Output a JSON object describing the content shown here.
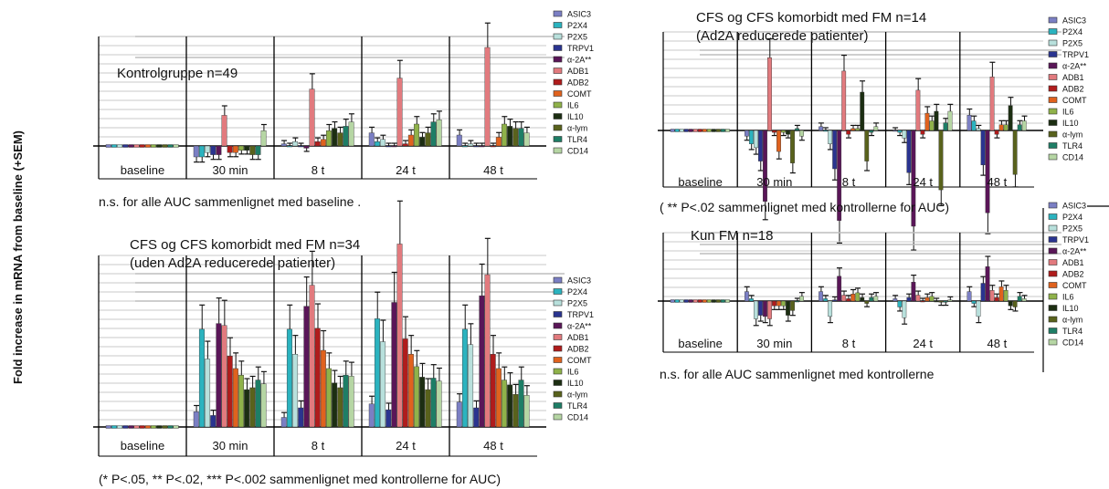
{
  "y_axis_label": "Fold increase in mRNA from baseline (+SEM)",
  "legend_items": [
    "ASIC3",
    "P2X4",
    "P2X5",
    "TRPV1",
    "α-2A**",
    "ADB1",
    "ADB2",
    "COMT",
    "IL6",
    "IL10",
    "α-lym",
    "TLR4",
    "CD14"
  ],
  "legend_colors": [
    "#7b7fc4",
    "#2bb3bf",
    "#b8e0dc",
    "#2a3490",
    "#5a1658",
    "#e27a7e",
    "#b01c1c",
    "#e0621e",
    "#8fb24a",
    "#1c2e12",
    "#59621c",
    "#1e7e66",
    "#b6d6a4"
  ],
  "chart_data": [
    {
      "type": "bar",
      "title": "Kontrolgruppe n=49",
      "categories": [
        "baseline",
        "30 min",
        "8 t",
        "24 t",
        "48 t"
      ],
      "series_values": [
        [
          1,
          0.5,
          1.1,
          1.6,
          1.5
        ],
        [
          1,
          0.5,
          1.0,
          1.2,
          1.0
        ],
        [
          1,
          0.7,
          1.2,
          1.3,
          1.1
        ],
        [
          1,
          0.6,
          1.0,
          1.0,
          1.0
        ],
        [
          1,
          0.6,
          0.9,
          1.0,
          1.0
        ],
        [
          1,
          2.4,
          3.6,
          4.1,
          5.5
        ],
        [
          1,
          0.7,
          1.2,
          1.1,
          1.0
        ],
        [
          1,
          0.7,
          1.3,
          1.5,
          1.4
        ],
        [
          1,
          0.8,
          1.7,
          2.0,
          2.0
        ],
        [
          1,
          0.8,
          1.8,
          1.4,
          1.9
        ],
        [
          1,
          0.6,
          1.6,
          1.6,
          1.8
        ],
        [
          1,
          0.6,
          1.9,
          2.1,
          1.8
        ],
        [
          1,
          1.7,
          2.1,
          2.2,
          1.6
        ]
      ],
      "footnote": "n.s. for alle AUC sammenlignet med baseline ."
    },
    {
      "type": "bar",
      "title": "CFS og CFS komorbidt med FM n=34",
      "subtitle": "(uden Ad2A reducerede patienter)",
      "categories": [
        "baseline",
        "30 min",
        "8 t",
        "24 t",
        "48 t"
      ],
      "series_values": [
        [
          1,
          2.6,
          2.0,
          3.4,
          3.6
        ],
        [
          1,
          11.2,
          11.2,
          12.3,
          11.2
        ],
        [
          1,
          8.1,
          8.6,
          9.9,
          9.6
        ],
        [
          1,
          2.2,
          3.0,
          2.8,
          3.0
        ],
        [
          1,
          11.8,
          13.6,
          14.0,
          14.7
        ],
        [
          1,
          11.6,
          15.8,
          20.1,
          16.9
        ],
        [
          1,
          8.4,
          11.3,
          10.2,
          8.6
        ],
        [
          1,
          7.1,
          9.0,
          8.6,
          7.1
        ],
        [
          1,
          6.4,
          7.1,
          7.3,
          5.9
        ],
        [
          1,
          4.9,
          5.6,
          6.2,
          5.4
        ],
        [
          1,
          5.1,
          5.1,
          4.9,
          4.4
        ],
        [
          1,
          5.9,
          6.4,
          6.1,
          5.9
        ],
        [
          1,
          5.5,
          6.3,
          5.8,
          4.3
        ]
      ],
      "footnote": "(* P<.05, ** P<.02, *** P<.002 sammenlignet med kontrollerne for AUC)"
    },
    {
      "type": "bar",
      "title": "CFS og CFS komorbidt med FM n=14",
      "subtitle": "(Ad2A reducerede patienter)",
      "categories": [
        "baseline",
        "30 min",
        "8 t",
        "24 t",
        "48 t"
      ],
      "series_values": [
        [
          1,
          0.7,
          1.2,
          1.0,
          1.8
        ],
        [
          1,
          0.3,
          1.0,
          0.9,
          1.5
        ],
        [
          1,
          0.1,
          0.3,
          0.6,
          1.1
        ],
        [
          1,
          -0.6,
          -1.0,
          -1.2,
          -0.8
        ],
        [
          1,
          -2.7,
          -3.7,
          -4.0,
          -3.3
        ],
        [
          1,
          4.8,
          4.1,
          3.1,
          3.8
        ],
        [
          1,
          0.9,
          0.8,
          0.8,
          0.8
        ],
        [
          1,
          -0.1,
          1.1,
          1.9,
          1.3
        ],
        [
          1,
          0.9,
          1.1,
          1.5,
          1.3
        ],
        [
          1,
          0.8,
          3.0,
          2.0,
          2.3
        ],
        [
          1,
          -0.7,
          -0.6,
          -2.1,
          -1.3
        ],
        [
          1,
          1.1,
          0.9,
          1.4,
          1.3
        ],
        [
          1,
          0.7,
          1.2,
          2.0,
          1.5
        ]
      ],
      "footnote": "( ** P<.02 sammenlignet med kontrollerne for AUC)"
    },
    {
      "type": "bar",
      "title": "Kun FM n=18",
      "categories": [
        "baseline",
        "30 min",
        "8 t",
        "24 t",
        "48 t"
      ],
      "series_values": [
        [
          1,
          1.8,
          1.8,
          1.2,
          1.8
        ],
        [
          1,
          1.2,
          1.2,
          0.5,
          0.8
        ],
        [
          1,
          -0.5,
          -0.3,
          -0.4,
          -0.3
        ],
        [
          1,
          -0.2,
          1.1,
          1.3,
          2.5
        ],
        [
          1,
          -0.3,
          3.1,
          2.6,
          3.9
        ],
        [
          1,
          -0.5,
          1.5,
          1.5,
          1.9
        ],
        [
          1,
          0.6,
          1.2,
          1.0,
          1.3
        ],
        [
          1,
          0.6,
          1.6,
          1.3,
          2.2
        ],
        [
          1,
          0.6,
          1.7,
          1.4,
          1.9
        ],
        [
          1,
          -0.2,
          1.3,
          1.0,
          0.6
        ],
        [
          1,
          0.2,
          0.8,
          0.9,
          0.5
        ],
        [
          1,
          1.0,
          1.3,
          0.9,
          1.4
        ],
        [
          1,
          1.4,
          1.4,
          1.1,
          1.2
        ]
      ],
      "footnote": "n.s. for alle AUC sammenlignet med kontrollerne"
    }
  ]
}
